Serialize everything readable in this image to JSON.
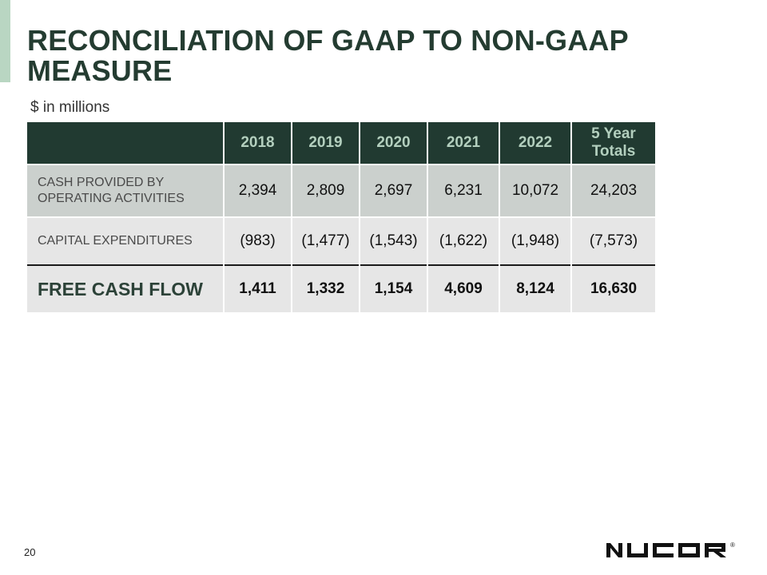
{
  "slide": {
    "title_line1": "RECONCILIATION OF GAAP TO NON-GAAP",
    "title_line2": "MEASURE",
    "subtitle": "$ in millions",
    "page_number": "20",
    "logo_text": "NUCOR",
    "logo_mark": "®"
  },
  "colors": {
    "title": "#243c31",
    "header_bg": "#213a31",
    "header_text": "#b3cfbe",
    "accent": "#b9d6c2"
  },
  "table": {
    "headers": [
      "",
      "2018",
      "2019",
      "2020",
      "2021",
      "2022",
      "5 Year Totals"
    ],
    "rows": [
      {
        "label": "CASH PROVIDED BY OPERATING ACTIVITIES",
        "values": [
          "2,394",
          "2,809",
          "2,697",
          "6,231",
          "10,072",
          "24,203"
        ]
      },
      {
        "label": "CAPITAL EXPENDITURES",
        "values": [
          "(983)",
          "(1,477)",
          "(1,543)",
          "(1,622)",
          "(1,948)",
          "(7,573)"
        ]
      },
      {
        "label": "FREE CASH FLOW",
        "values": [
          "1,411",
          "1,332",
          "1,154",
          "4,609",
          "8,124",
          "16,630"
        ]
      }
    ]
  }
}
